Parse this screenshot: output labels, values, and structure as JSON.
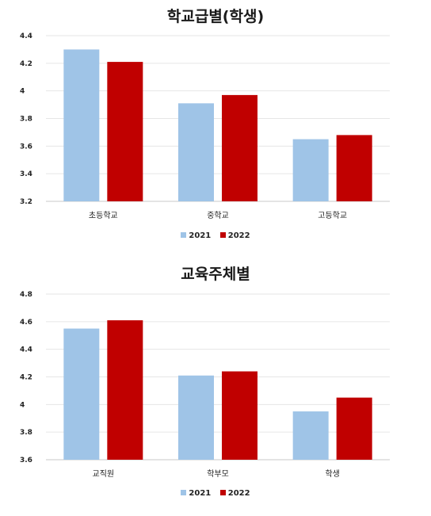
{
  "chart_data": [
    {
      "type": "bar",
      "title": "학교급별(학생)",
      "categories": [
        "초등학교",
        "중학교",
        "고등학교"
      ],
      "series": [
        {
          "name": "2021",
          "color": "#9fc4e7",
          "values": [
            4.3,
            3.91,
            3.65
          ]
        },
        {
          "name": "2022",
          "color": "#c00000",
          "values": [
            4.21,
            3.97,
            3.68
          ]
        }
      ],
      "ylim": [
        3.2,
        4.4
      ],
      "yticks": [
        "3.2",
        "3.4",
        "3.6",
        "3.8",
        "4",
        "4.2",
        "4.4"
      ],
      "ytick_values": [
        3.2,
        3.4,
        3.6,
        3.8,
        4.0,
        4.2,
        4.4
      ],
      "xlabel": "",
      "ylabel": "",
      "grid": true,
      "legend": "bottom"
    },
    {
      "type": "bar",
      "title": "교육주체별",
      "categories": [
        "교직원",
        "학부모",
        "학생"
      ],
      "series": [
        {
          "name": "2021",
          "color": "#9fc4e7",
          "values": [
            4.55,
            4.21,
            3.95
          ]
        },
        {
          "name": "2022",
          "color": "#c00000",
          "values": [
            4.61,
            4.24,
            4.05
          ]
        }
      ],
      "ylim": [
        3.6,
        4.8
      ],
      "yticks": [
        "3.6",
        "3.8",
        "4",
        "4.2",
        "4.4",
        "4.6",
        "4.8"
      ],
      "ytick_values": [
        3.6,
        3.8,
        4.0,
        4.2,
        4.4,
        4.6,
        4.8
      ],
      "xlabel": "",
      "ylabel": "",
      "grid": true,
      "legend": "bottom"
    }
  ]
}
